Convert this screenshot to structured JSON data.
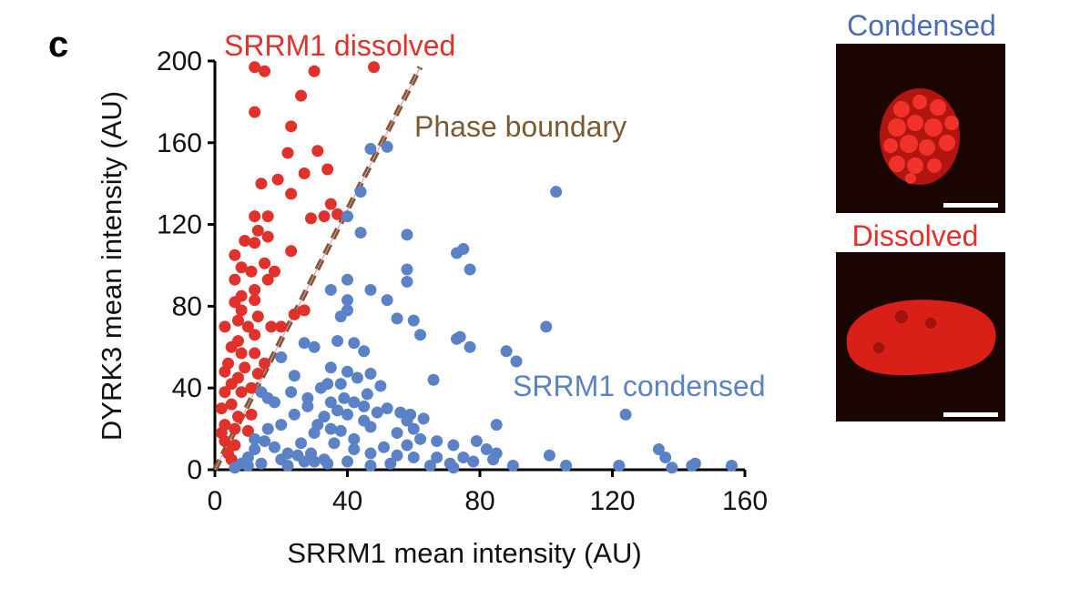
{
  "panel_label": "c",
  "colors": {
    "dissolved": "#e1312b",
    "condensed": "#5b82c6",
    "boundary": "#7b5a33",
    "axis": "#000000"
  },
  "annotations": {
    "dissolved_label": "SRRM1 dissolved",
    "boundary_label": "Phase boundary",
    "condensed_label": "SRRM1 condensed"
  },
  "insets": {
    "condensed_title": "Condensed",
    "dissolved_title": "Dissolved"
  },
  "chart_data": {
    "type": "scatter",
    "xlabel": "SRRM1 mean intensity (AU)",
    "ylabel": "DYRK3 mean intensity (AU)",
    "xlim": [
      0,
      160
    ],
    "ylim": [
      0,
      200
    ],
    "xticks": [
      0,
      40,
      80,
      120,
      160
    ],
    "yticks": [
      0,
      40,
      80,
      120,
      160,
      200
    ],
    "grid": false,
    "boundary_line": {
      "x": [
        0,
        62
      ],
      "y": [
        0,
        197
      ]
    },
    "series": [
      {
        "name": "SRRM1 dissolved",
        "points": [
          [
            12,
            197
          ],
          [
            15,
            195
          ],
          [
            30,
            195
          ],
          [
            48,
            197
          ],
          [
            26,
            183
          ],
          [
            12,
            175
          ],
          [
            23,
            168
          ],
          [
            31,
            156
          ],
          [
            22,
            155
          ],
          [
            34,
            147
          ],
          [
            27,
            145
          ],
          [
            19,
            142
          ],
          [
            14,
            140
          ],
          [
            23,
            135
          ],
          [
            35,
            130
          ],
          [
            33,
            124
          ],
          [
            29,
            123
          ],
          [
            16,
            124
          ],
          [
            12,
            124
          ],
          [
            13,
            117
          ],
          [
            16,
            114
          ],
          [
            37,
            125
          ],
          [
            9,
            112
          ],
          [
            12,
            111
          ],
          [
            23,
            107
          ],
          [
            6,
            105
          ],
          [
            15,
            101
          ],
          [
            8,
            99
          ],
          [
            11,
            97
          ],
          [
            18,
            97
          ],
          [
            6,
            93
          ],
          [
            16,
            93
          ],
          [
            12,
            88
          ],
          [
            8,
            85
          ],
          [
            6,
            82
          ],
          [
            12,
            83
          ],
          [
            8,
            78
          ],
          [
            13,
            75
          ],
          [
            24,
            76
          ],
          [
            27,
            78
          ],
          [
            7,
            73
          ],
          [
            3,
            70
          ],
          [
            10,
            70
          ],
          [
            17,
            70
          ],
          [
            20,
            70
          ],
          [
            12,
            66
          ],
          [
            7,
            63
          ],
          [
            5,
            60
          ],
          [
            8,
            57
          ],
          [
            12,
            57
          ],
          [
            4,
            52
          ],
          [
            3,
            48
          ],
          [
            7,
            45
          ],
          [
            5,
            42
          ],
          [
            3,
            38
          ],
          [
            8,
            38
          ],
          [
            11,
            40
          ],
          [
            5,
            32
          ],
          [
            2,
            30
          ],
          [
            7,
            26
          ],
          [
            3,
            22
          ],
          [
            6,
            20
          ],
          [
            2,
            18
          ],
          [
            10,
            19
          ],
          [
            6,
            12
          ],
          [
            4,
            8
          ],
          [
            5,
            5
          ],
          [
            13,
            47
          ],
          [
            15,
            52
          ],
          [
            9,
            50
          ],
          [
            11,
            27
          ],
          [
            3,
            14
          ]
        ]
      },
      {
        "name": "SRRM1 condensed",
        "points": [
          [
            47,
            157
          ],
          [
            52,
            158
          ],
          [
            44,
            136
          ],
          [
            103,
            136
          ],
          [
            40,
            124
          ],
          [
            44,
            116
          ],
          [
            58,
            115
          ],
          [
            75,
            108
          ],
          [
            58,
            98
          ],
          [
            77,
            98
          ],
          [
            73,
            106
          ],
          [
            40,
            93
          ],
          [
            58,
            92
          ],
          [
            47,
            88
          ],
          [
            35,
            88
          ],
          [
            40,
            83
          ],
          [
            52,
            83
          ],
          [
            40,
            78
          ],
          [
            38,
            75
          ],
          [
            55,
            74
          ],
          [
            60,
            73
          ],
          [
            27,
            62
          ],
          [
            42,
            62
          ],
          [
            37,
            63
          ],
          [
            30,
            60
          ],
          [
            45,
            58
          ],
          [
            62,
            66
          ],
          [
            74,
            65
          ],
          [
            73,
            64
          ],
          [
            77,
            60
          ],
          [
            88,
            58
          ],
          [
            91,
            53
          ],
          [
            35,
            50
          ],
          [
            40,
            48
          ],
          [
            47,
            47
          ],
          [
            43,
            45
          ],
          [
            66,
            44
          ],
          [
            34,
            42
          ],
          [
            38,
            42
          ],
          [
            32,
            40
          ],
          [
            39,
            35
          ],
          [
            35,
            33
          ],
          [
            42,
            33
          ],
          [
            45,
            31
          ],
          [
            37,
            29
          ],
          [
            52,
            30
          ],
          [
            56,
            28
          ],
          [
            59,
            27
          ],
          [
            40,
            27
          ],
          [
            58,
            24
          ],
          [
            63,
            25
          ],
          [
            47,
            21
          ],
          [
            55,
            18
          ],
          [
            60,
            20
          ],
          [
            62,
            15
          ],
          [
            67,
            14
          ],
          [
            79,
            14
          ],
          [
            82,
            10
          ],
          [
            85,
            8
          ],
          [
            72,
            12
          ],
          [
            58,
            12
          ],
          [
            51,
            11
          ],
          [
            42,
            10
          ],
          [
            47,
            8
          ],
          [
            55,
            7
          ],
          [
            60,
            6
          ],
          [
            67,
            6
          ],
          [
            71,
            3
          ],
          [
            75,
            6
          ],
          [
            85,
            22
          ],
          [
            100,
            70
          ],
          [
            101,
            7
          ],
          [
            106,
            2
          ],
          [
            122,
            2
          ],
          [
            124,
            27
          ],
          [
            134,
            10
          ],
          [
            136,
            6
          ],
          [
            138,
            1
          ],
          [
            144,
            2
          ],
          [
            156,
            2
          ],
          [
            145,
            3
          ],
          [
            25,
            7
          ],
          [
            30,
            4
          ],
          [
            34,
            3
          ],
          [
            20,
            5
          ],
          [
            18,
            11
          ],
          [
            15,
            14
          ],
          [
            12,
            10
          ],
          [
            10,
            6
          ],
          [
            8,
            3
          ],
          [
            6,
            1
          ],
          [
            10,
            2
          ],
          [
            14,
            3
          ],
          [
            22,
            8
          ],
          [
            26,
            13
          ],
          [
            30,
            18
          ],
          [
            20,
            22
          ],
          [
            24,
            27
          ],
          [
            28,
            31
          ],
          [
            33,
            26
          ],
          [
            38,
            19
          ],
          [
            42,
            15
          ],
          [
            45,
            24
          ],
          [
            49,
            28
          ],
          [
            16,
            20
          ],
          [
            22,
            2
          ],
          [
            29,
            8
          ],
          [
            36,
            13
          ],
          [
            33,
            5
          ],
          [
            40,
            4
          ],
          [
            47,
            2
          ],
          [
            53,
            3
          ],
          [
            65,
            2
          ],
          [
            72,
            1
          ],
          [
            78,
            4
          ],
          [
            84,
            5
          ],
          [
            90,
            2
          ],
          [
            16,
            35
          ],
          [
            18,
            33
          ],
          [
            23,
            38
          ],
          [
            28,
            35
          ],
          [
            31,
            22
          ],
          [
            35,
            20
          ],
          [
            27,
            4
          ],
          [
            12,
            15
          ],
          [
            46,
            37
          ],
          [
            50,
            41
          ],
          [
            24,
            46
          ],
          [
            20,
            55
          ],
          [
            14,
            38
          ]
        ]
      }
    ]
  }
}
